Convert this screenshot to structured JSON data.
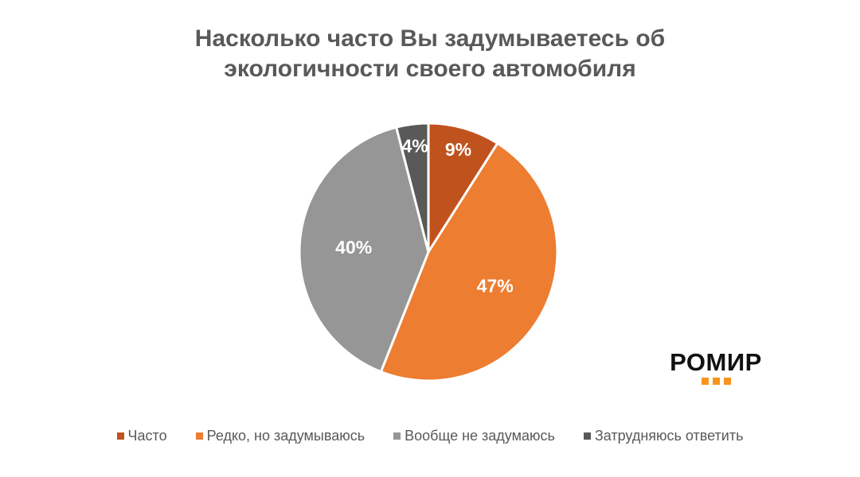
{
  "page": {
    "background": "#FFFFFF"
  },
  "title": "Насколько часто Вы задумываетесь об экологичности своего автомобиля",
  "logo": {
    "text": "РОМИР",
    "text_color": "#111111",
    "dot_color": "#F7941D"
  },
  "chart_data": {
    "type": "pie",
    "title": "Насколько часто Вы задумываетесь об экологичности своего автомобиля",
    "categories": [
      "Часто",
      "Редко, но задумываюсь",
      "Вообще не задумаюсь",
      "Затрудняюсь ответить"
    ],
    "values": [
      9,
      47,
      40,
      4
    ],
    "unit": "%",
    "labels": [
      "9%",
      "47%",
      "40%",
      "4%"
    ],
    "colors": [
      "#C0521D",
      "#ED7D31",
      "#969696",
      "#595959"
    ],
    "label_color": "#FFFFFF",
    "start_angle_deg": 0,
    "direction": "clockwise",
    "legend_position": "bottom",
    "legend_text_color": "#595959",
    "title_color": "#595959"
  }
}
